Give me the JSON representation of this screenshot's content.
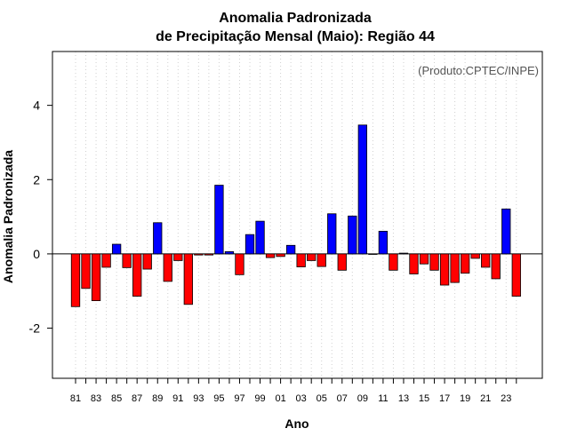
{
  "chart_data": {
    "type": "bar",
    "title_line1": "Anomalia Padronizada",
    "title_line2": "de Precipitação Mensal (Maio): Região 44",
    "xlabel": "Ano",
    "ylabel": "Anomalia Padronizada",
    "credit": "(Produto:CPTEC/INPE)",
    "ylim": [
      -3.35,
      5.45
    ],
    "yticks": [
      -2,
      0,
      2,
      4
    ],
    "ytick_labels": [
      "-2",
      "0",
      "2",
      "4"
    ],
    "grid": "vertical dotted",
    "positive_color": "#0000ff",
    "negative_color": "#ff0000",
    "categories": [
      "1981",
      "1982",
      "1983",
      "1984",
      "1985",
      "1986",
      "1987",
      "1988",
      "1989",
      "1990",
      "1991",
      "1992",
      "1993",
      "1994",
      "1995",
      "1996",
      "1997",
      "1998",
      "1999",
      "2000",
      "2001",
      "2002",
      "2003",
      "2004",
      "2005",
      "2006",
      "2007",
      "2008",
      "2009",
      "2010",
      "2011",
      "2012",
      "2013",
      "2014",
      "2015",
      "2016",
      "2017",
      "2018",
      "2019",
      "2020",
      "2021",
      "2022",
      "2023",
      "2024"
    ],
    "xtick_labels": [
      "81",
      "",
      "83",
      "",
      "85",
      "",
      "87",
      "",
      "89",
      "",
      "91",
      "",
      "93",
      "",
      "95",
      "",
      "97",
      "",
      "99",
      "",
      "01",
      "",
      "03",
      "",
      "05",
      "",
      "07",
      "",
      "09",
      "",
      "11",
      "",
      "13",
      "",
      "15",
      "",
      "17",
      "",
      "19",
      "",
      "21",
      "",
      "23",
      ""
    ],
    "values": [
      -1.42,
      -0.93,
      -1.26,
      -0.36,
      0.26,
      -0.37,
      -1.14,
      -0.41,
      0.84,
      -0.74,
      -0.18,
      -1.36,
      -0.03,
      -0.03,
      1.85,
      0.06,
      -0.56,
      0.52,
      0.88,
      -0.1,
      -0.07,
      0.23,
      -0.35,
      -0.18,
      -0.34,
      1.08,
      -0.44,
      1.02,
      3.47,
      0.0,
      0.61,
      -0.44,
      0.02,
      -0.54,
      -0.27,
      -0.44,
      -0.84,
      -0.77,
      -0.52,
      -0.12,
      -0.36,
      -0.67,
      1.21,
      -1.14
    ]
  }
}
